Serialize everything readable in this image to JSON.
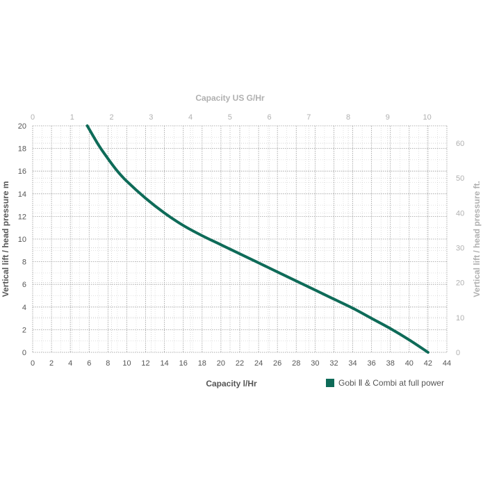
{
  "chart_data": {
    "type": "line",
    "title": "",
    "xlabel": "Capacity l/Hr",
    "ylabel": "Vertical lift / head pressure m",
    "x2label": "Capacity US G/Hr",
    "y2label": "Vertical lift / head pressure ft.",
    "xlim": [
      0,
      44
    ],
    "ylim": [
      0,
      20
    ],
    "x2lim": [
      0,
      10.5
    ],
    "y2lim": [
      0,
      65
    ],
    "x_ticks": [
      0,
      2,
      4,
      6,
      8,
      10,
      12,
      14,
      16,
      18,
      20,
      22,
      24,
      26,
      28,
      30,
      32,
      34,
      36,
      38,
      40,
      42,
      44
    ],
    "y_ticks": [
      0,
      2,
      4,
      6,
      8,
      10,
      12,
      14,
      16,
      18,
      20
    ],
    "x2_ticks": [
      0,
      1,
      2,
      3,
      4,
      5,
      6,
      7,
      8,
      9,
      10
    ],
    "y2_ticks": [
      0,
      10,
      20,
      30,
      40,
      50,
      60
    ],
    "grid": true,
    "legend_position": "bottom-right",
    "series": [
      {
        "name": "Gobi Ⅱ & Combi at full power",
        "color": "#0e6b58",
        "x": [
          5.8,
          7,
          8,
          9,
          10,
          12,
          14,
          16,
          18,
          20,
          22,
          24,
          26,
          28,
          30,
          32,
          34,
          36,
          38,
          40,
          42
        ],
        "y": [
          20,
          18.3,
          17.1,
          16.0,
          15.1,
          13.6,
          12.3,
          11.2,
          10.3,
          9.5,
          8.7,
          7.9,
          7.1,
          6.3,
          5.5,
          4.7,
          3.9,
          3.0,
          2.1,
          1.1,
          0
        ]
      }
    ]
  },
  "colors": {
    "curve": "#0e6b58",
    "axis_dark": "#555555",
    "axis_light": "#b0b0b0",
    "grid": "#9a9a9a"
  }
}
